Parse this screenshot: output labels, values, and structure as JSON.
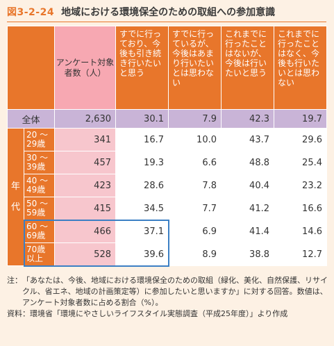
{
  "figure": {
    "number": "図3-2-24",
    "title": "地域における環境保全のための取組への参加意識"
  },
  "table": {
    "count_header": "アンケート対象者数（人）",
    "columns": [
      "すでに行っており、今後も引き続き行いたいと思う",
      "すでに行っているが、今後はあまり行いたいとは思わない",
      "これまでに行ったことはないが、今後は行いたいと思う",
      "これまでに行ったことはなく、今後も行いたいとは思わない"
    ],
    "total": {
      "label": "全体",
      "count": "2,630",
      "values": [
        "30.1",
        "7.9",
        "42.3",
        "19.7"
      ]
    },
    "side_label": [
      "年",
      "代"
    ],
    "rows": [
      {
        "age": "20 ～ 29歳",
        "count": "341",
        "values": [
          "16.7",
          "10.0",
          "43.7",
          "29.6"
        ]
      },
      {
        "age": "30 ～ 39歳",
        "count": "457",
        "values": [
          "19.3",
          "6.6",
          "48.8",
          "25.4"
        ]
      },
      {
        "age": "40 ～ 49歳",
        "count": "423",
        "values": [
          "28.6",
          "7.8",
          "40.4",
          "23.2"
        ]
      },
      {
        "age": "50 ～ 59歳",
        "count": "415",
        "values": [
          "34.5",
          "7.7",
          "41.2",
          "16.6"
        ]
      },
      {
        "age": "60 ～ 69歳",
        "count": "466",
        "values": [
          "37.1",
          "6.9",
          "41.4",
          "14.6"
        ]
      },
      {
        "age": "70歳 以上",
        "count": "528",
        "values": [
          "39.6",
          "8.9",
          "38.8",
          "12.7"
        ]
      }
    ]
  },
  "notes": {
    "note_head": "注：",
    "note_text": "「あなたは、今後、地域における環境保全のための取組（緑化、美化、自然保護、リサイクル、省エネ、地域の計画策定等）に参加したいと思いますか」に対する回答。数値は、アンケート対象者数に占める割合（%）。",
    "source_head": "資料：",
    "source_text": "環境省「環境にやさしいライフスタイル実態調査（平成25年度）」より作成"
  },
  "colors": {
    "accent": "#e8762b",
    "pink": "#f7c6cd",
    "lavender": "#c9b4d7",
    "highlight": "#3b7fc4"
  }
}
